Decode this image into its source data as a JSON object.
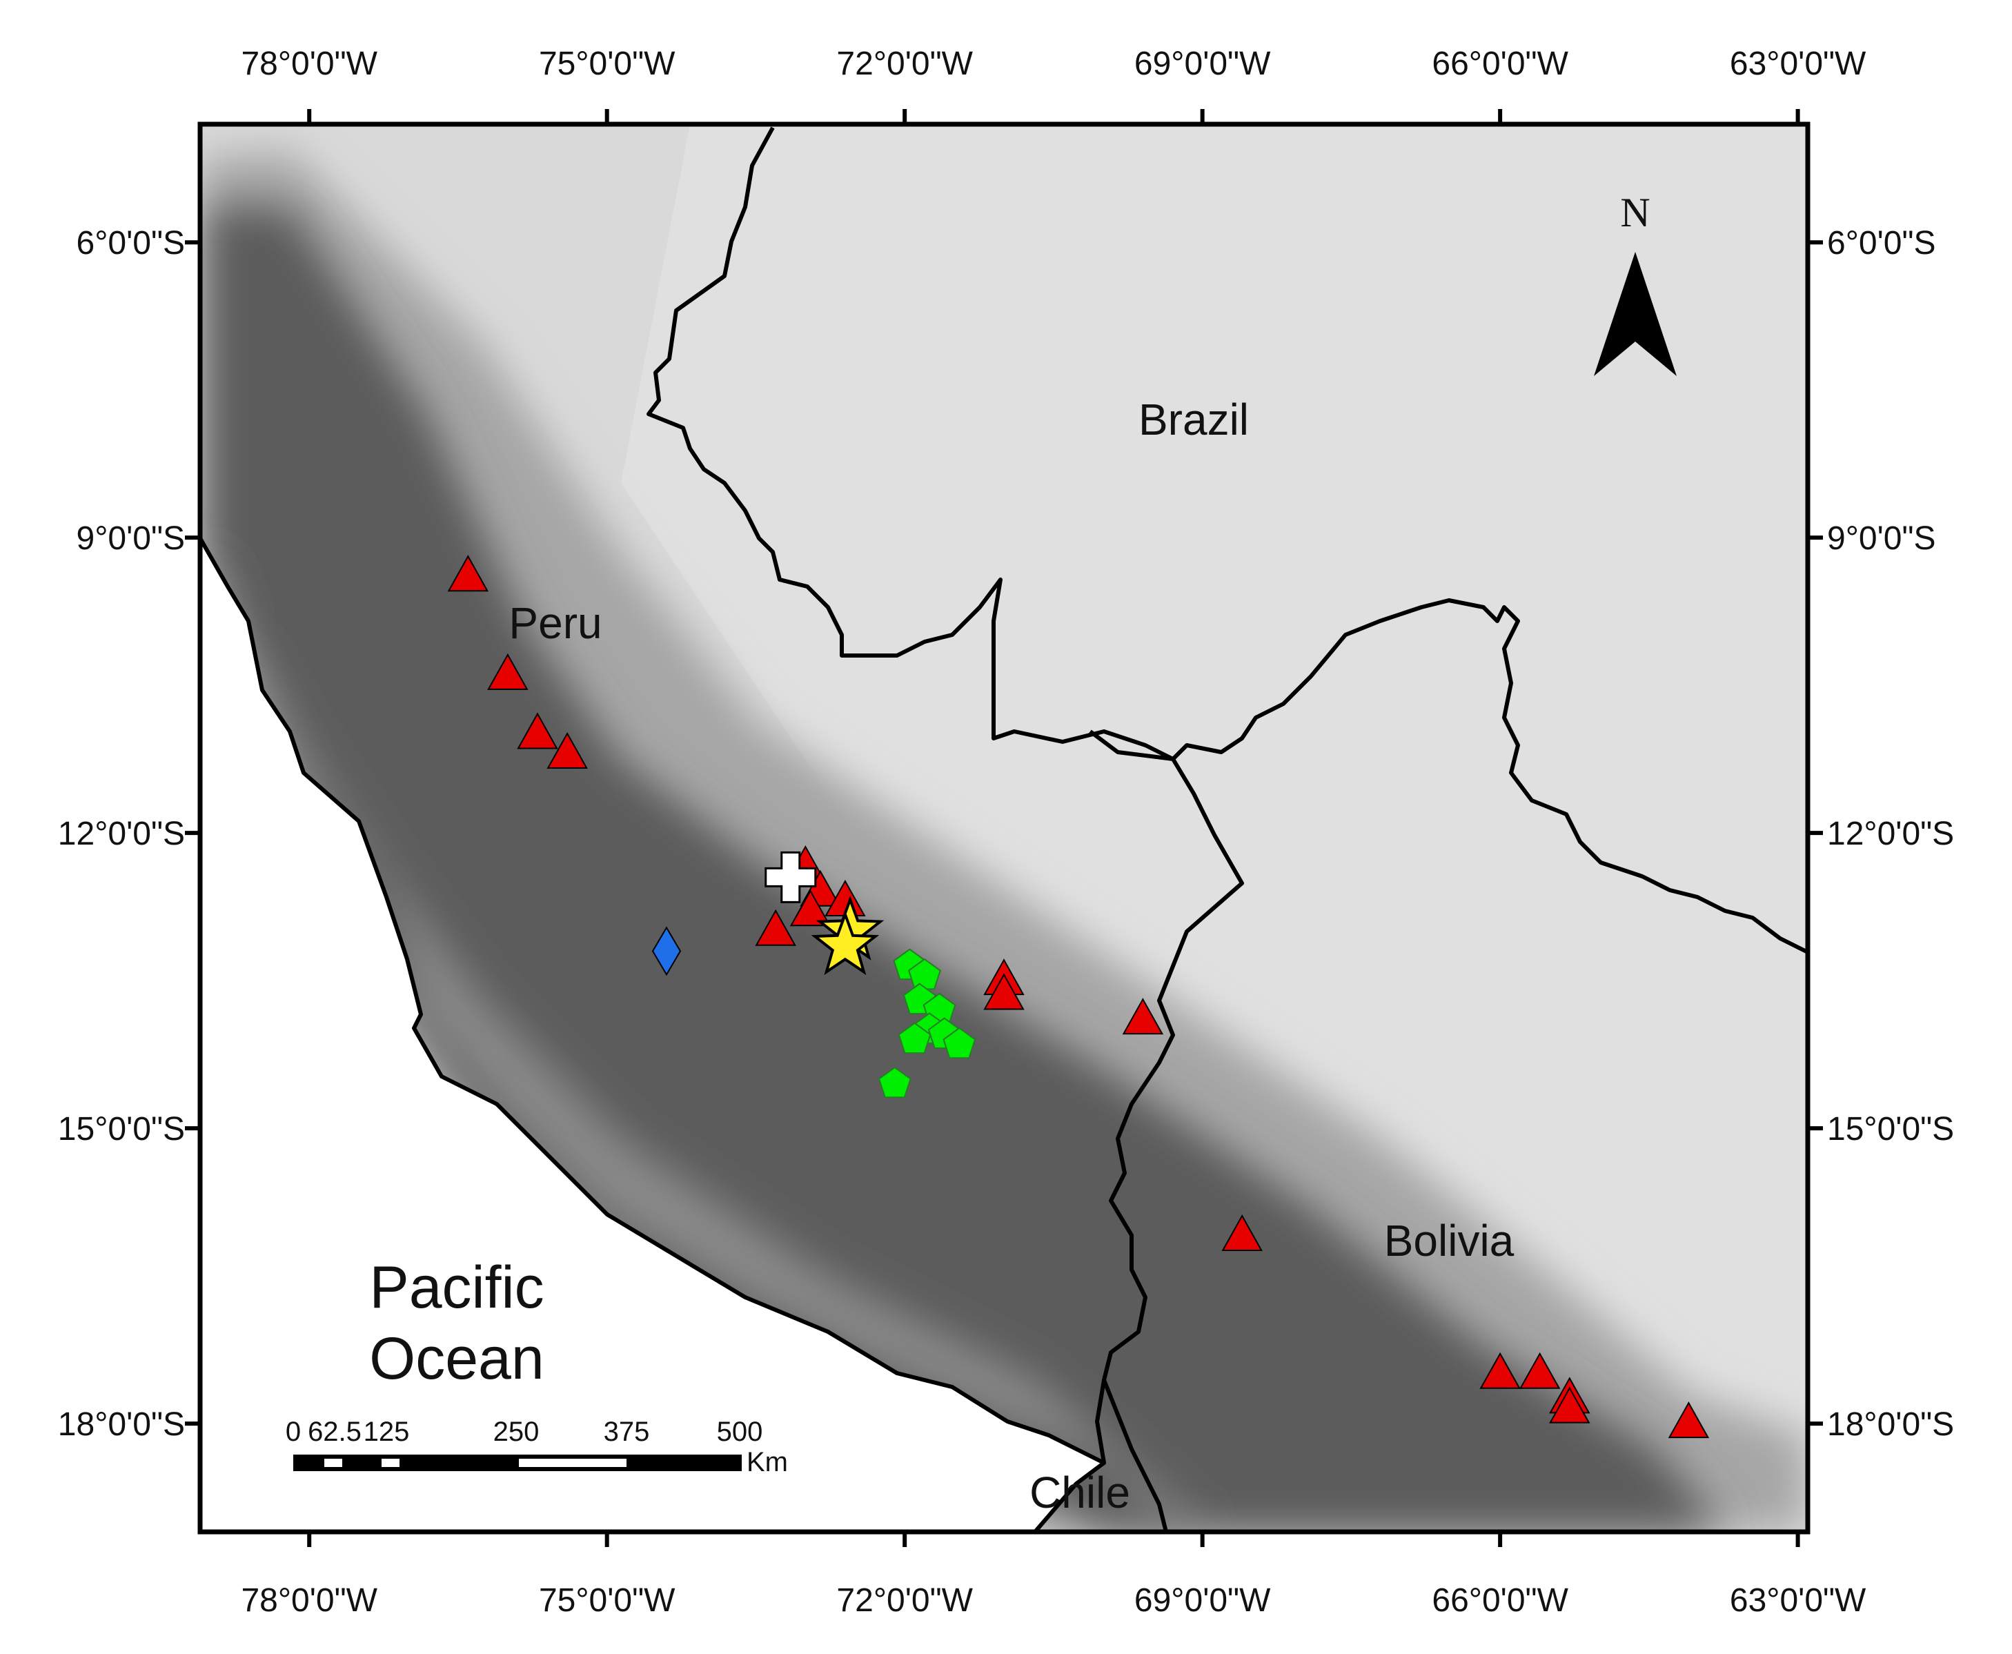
{
  "map": {
    "frame": {
      "lon_range": [
        -79.1,
        -62.9
      ],
      "lat_range": [
        -19.1,
        -4.8
      ]
    },
    "lon_ticks": [
      {
        "value": -78,
        "label": "78°0'0\"W"
      },
      {
        "value": -75,
        "label": "75°0'0\"W"
      },
      {
        "value": -72,
        "label": "72°0'0\"W"
      },
      {
        "value": -69,
        "label": "69°0'0\"W"
      },
      {
        "value": -66,
        "label": "66°0'0\"W"
      },
      {
        "value": -63,
        "label": "63°0'0\"W"
      }
    ],
    "lat_ticks": [
      {
        "value": -6,
        "label": "6°0'0\"S"
      },
      {
        "value": -9,
        "label": "9°0'0\"S"
      },
      {
        "value": -12,
        "label": "12°0'0\"S"
      },
      {
        "value": -15,
        "label": "15°0'0\"S"
      },
      {
        "value": -18,
        "label": "18°0'0\"S"
      }
    ],
    "labels": {
      "brazil": "Brazil",
      "peru": "Peru",
      "bolivia": "Bolivia",
      "chile": "Chile",
      "pacific_line1": "Pacific",
      "pacific_line2": "Ocean",
      "north": "N"
    },
    "scale_bar": {
      "ticks": [
        "0",
        "62.5",
        "125",
        "250",
        "375",
        "500"
      ],
      "unit": "Km"
    },
    "colors": {
      "triangle": "#e60000",
      "pentagon": "#00ee00",
      "star": "#ffee22",
      "diamond": "#1e6fe8",
      "cross": "#ffffff",
      "lowland": "#d6d6d6",
      "andes_dark": "#5a5a5a",
      "ocean": "#ffffff",
      "border": "#000000"
    },
    "markers": {
      "triangles": [
        [
          -76.4,
          -9.4
        ],
        [
          -76.0,
          -10.4
        ],
        [
          -75.7,
          -11.0
        ],
        [
          -75.4,
          -11.2
        ],
        [
          -73.0,
          -12.35
        ],
        [
          -72.85,
          -12.6
        ],
        [
          -72.6,
          -12.7
        ],
        [
          -72.95,
          -12.8
        ],
        [
          -73.3,
          -13.0
        ],
        [
          -71.0,
          -13.5
        ],
        [
          -71.0,
          -13.65
        ],
        [
          -69.6,
          -13.9
        ],
        [
          -68.6,
          -16.1
        ],
        [
          -66.0,
          -17.5
        ],
        [
          -65.6,
          -17.5
        ],
        [
          -65.3,
          -17.75
        ],
        [
          -65.3,
          -17.85
        ],
        [
          -64.1,
          -18.0
        ]
      ],
      "pentagons": [
        [
          -71.95,
          -13.35
        ],
        [
          -71.8,
          -13.45
        ],
        [
          -71.85,
          -13.7
        ],
        [
          -71.65,
          -13.8
        ],
        [
          -71.75,
          -14.0
        ],
        [
          -71.9,
          -14.1
        ],
        [
          -71.6,
          -14.05
        ],
        [
          -71.45,
          -14.15
        ],
        [
          -72.1,
          -14.55
        ]
      ],
      "stars": [
        [
          -72.55,
          -13.0
        ],
        [
          -72.6,
          -13.15
        ]
      ],
      "diamonds": [
        [
          -74.4,
          -13.2
        ]
      ],
      "crosses": [
        [
          -73.15,
          -12.45
        ]
      ]
    }
  }
}
